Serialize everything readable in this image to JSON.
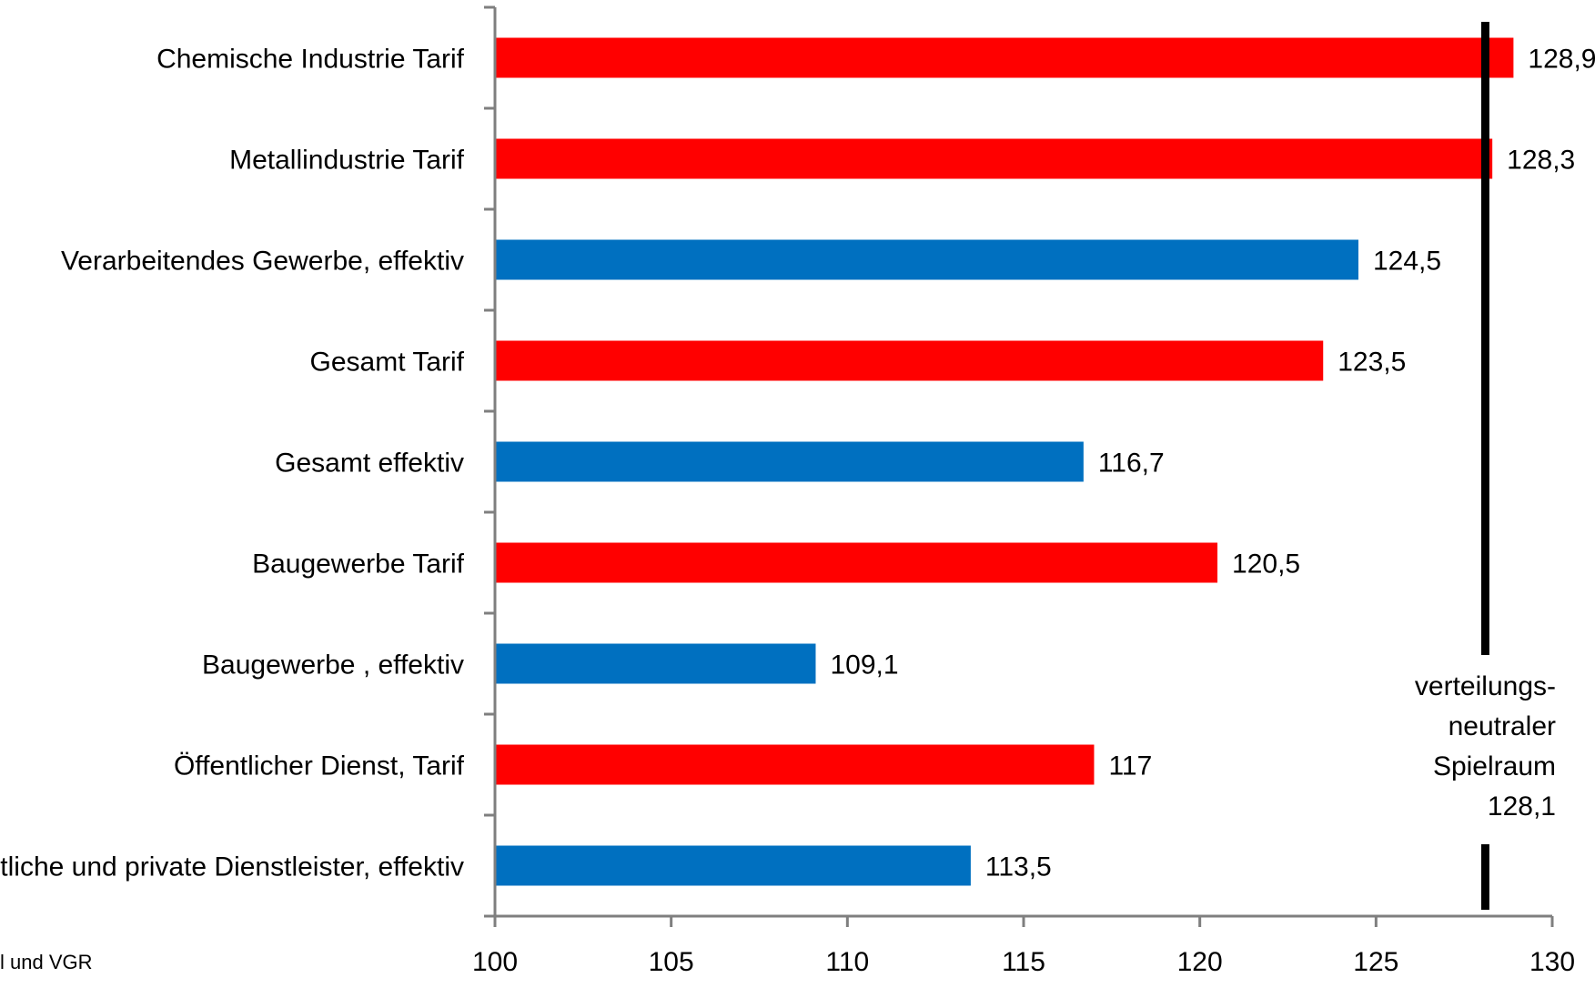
{
  "chart_data": {
    "type": "bar",
    "orientation": "horizontal",
    "categories": [
      "Chemische Industrie Tarif",
      "Metallindustrie Tarif",
      "Verarbeitendes Gewerbe, effektiv",
      "Gesamt Tarif",
      "Gesamt effektiv",
      "Baugewerbe Tarif",
      "Baugewerbe , effektiv",
      "Öffentlicher Dienst, Tarif",
      "Öffentliche und private Dienstleister, effektiv"
    ],
    "values": [
      128.9,
      128.3,
      124.5,
      123.5,
      116.7,
      120.5,
      109.1,
      117,
      113.5
    ],
    "value_labels": [
      "128,9",
      "128,3",
      "124,5",
      "123,5",
      "116,7",
      "120,5",
      "109,1",
      "117",
      "113,5"
    ],
    "bar_colors": [
      "#ff0000",
      "#ff0000",
      "#0070c0",
      "#ff0000",
      "#0070c0",
      "#ff0000",
      "#0070c0",
      "#ff0000",
      "#0070c0"
    ],
    "xlim": [
      100,
      130
    ],
    "xticks": [
      100,
      105,
      110,
      115,
      120,
      125,
      130
    ],
    "reference_line": {
      "value": 128.1,
      "label_lines": [
        "verteilungs-",
        "neutraler",
        "Spielraum",
        "128,1"
      ],
      "color": "#000000"
    },
    "source_note": "l und VGR"
  }
}
